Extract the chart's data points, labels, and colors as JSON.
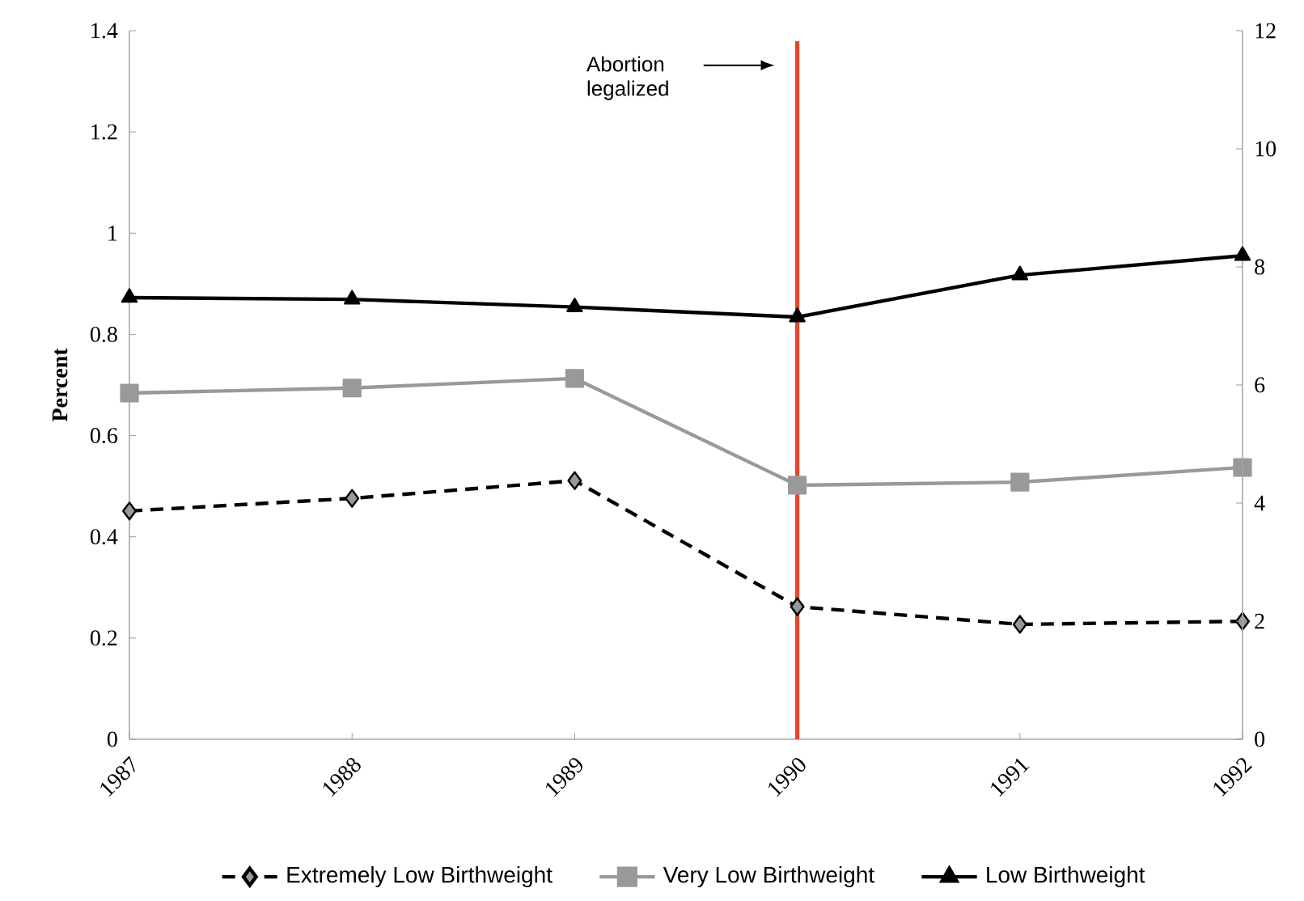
{
  "chart_data": {
    "type": "line",
    "ylabel": "Percent",
    "categories": [
      "1987",
      "1988",
      "1989",
      "1990",
      "1991",
      "1992"
    ],
    "series": [
      {
        "name": "Extremely Low Birthweight",
        "color": "#000000",
        "marker": "diamond",
        "line_style": "dashed",
        "values": [
          0.451,
          0.476,
          0.511,
          0.262,
          0.227,
          0.233
        ]
      },
      {
        "name": "Very Low Birthweight",
        "color": "#999999",
        "marker": "square",
        "line_style": "solid",
        "values": [
          0.684,
          0.694,
          0.713,
          0.502,
          0.508,
          0.537
        ]
      },
      {
        "name": "Low Birthweight",
        "color": "#000000",
        "marker": "triangle",
        "line_style": "solid",
        "axis": "y2",
        "values": [
          7.48,
          7.45,
          7.32,
          7.15,
          7.86,
          8.19
        ]
      }
    ],
    "ylim": [
      0,
      1.4
    ],
    "yticks": [
      0,
      0.2,
      0.4,
      0.6,
      0.8,
      1,
      1.2,
      1.4
    ],
    "y2lim": [
      0,
      12
    ],
    "y2ticks": [
      0,
      2,
      4,
      6,
      8,
      10,
      12
    ],
    "ref_lines": [
      {
        "axis": "x",
        "value": "1990",
        "color": "#e8452c"
      }
    ],
    "annotations": [
      "Abortion legalized"
    ],
    "legend": "bottom",
    "grid": false
  }
}
